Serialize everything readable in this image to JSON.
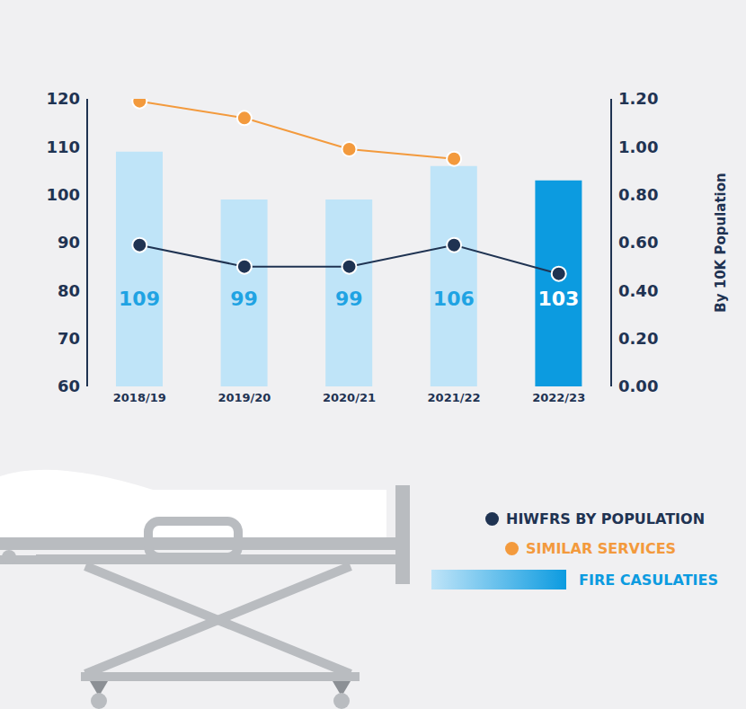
{
  "chart_data": {
    "type": "bar",
    "categories": [
      "2018/19",
      "2019/20",
      "2020/21",
      "2021/22",
      "2022/23"
    ],
    "series": [
      {
        "name": "FIRE CASULATIES",
        "type": "bar",
        "colors": [
          "#bfe4f8",
          "#bfe4f8",
          "#bfe4f8",
          "#bfe4f8",
          "#0c9be0"
        ],
        "values": [
          109,
          99,
          99,
          106,
          103
        ]
      },
      {
        "name": "HIWFRS BY POPULATION",
        "type": "line",
        "axis": "y2",
        "color": "#1f3352",
        "marker": "circle",
        "values": [
          0.59,
          0.5,
          0.5,
          0.59,
          0.47
        ]
      },
      {
        "name": "SIMILAR SERVICES",
        "type": "line",
        "axis": "y2",
        "color": "#f39a3d",
        "marker": "circle",
        "values": [
          1.19,
          1.12,
          0.99,
          0.95,
          null
        ]
      }
    ],
    "ylim": [
      60,
      120
    ],
    "yticks": [
      60,
      70,
      80,
      90,
      100,
      110,
      120
    ],
    "y2lim": [
      0,
      1.2
    ],
    "y2ticks": [
      {
        "value": 0,
        "label": "0.00"
      },
      {
        "value": 0.2,
        "label": "0.20"
      },
      {
        "value": 0.4,
        "label": "0.40"
      },
      {
        "value": 0.6,
        "label": "0.60"
      },
      {
        "value": 0.8,
        "label": "0.80"
      },
      {
        "value": 1.0,
        "label": "1.00"
      },
      {
        "value": 1.2,
        "label": "1.20"
      }
    ],
    "y2label": "By 10K Population",
    "data_labels": true,
    "grid": false,
    "legend": "bottom-right"
  }
}
